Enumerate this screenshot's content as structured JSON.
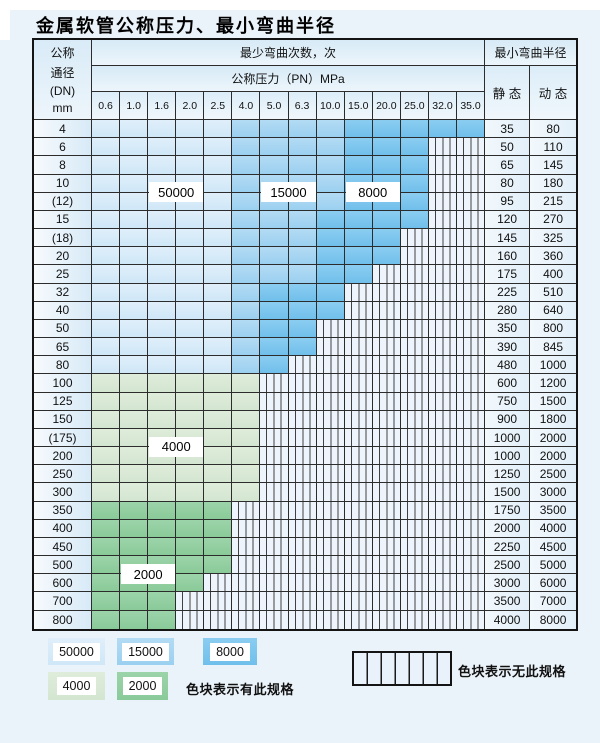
{
  "title": "金属软管公称压力、最小弯曲半径",
  "table": {
    "corner_lines": [
      "公称",
      "通径",
      "(DN)",
      "mm"
    ],
    "bend_header": "最少弯曲次数，次",
    "pressure_header": "公称压力（PN）MPa",
    "radius_header": "最小弯曲半径",
    "static_header": "静 态",
    "dynamic_header": "动 态",
    "overlay_labels": [
      {
        "text": "50000",
        "col_start": 3,
        "col_end": 4,
        "row_boundary": 4
      },
      {
        "text": "15000",
        "col_start": 7,
        "col_end": 8,
        "row_boundary": 4
      },
      {
        "text": "8000",
        "col_start": 10,
        "col_end": 11,
        "row_boundary": 4
      },
      {
        "text": "4000",
        "col_start": 3,
        "col_end": 4,
        "row_boundary": 18
      },
      {
        "text": "2000",
        "col_start": 2,
        "col_end": 3,
        "row_boundary": 25
      }
    ]
  },
  "legend": {
    "swatches": [
      {
        "label": "50000",
        "zone": "b1"
      },
      {
        "label": "15000",
        "zone": "b2"
      },
      {
        "label": "8000",
        "zone": "b3"
      },
      {
        "label": "4000",
        "zone": "g1"
      },
      {
        "label": "2000",
        "zone": "g2"
      }
    ],
    "available_note": "色块表示有此规格",
    "unavailable_note": "色块表示无此规格"
  },
  "colors": {
    "cycle_50000": "#d5eaf8",
    "cycle_15000": "#a6d5f1",
    "cycle_8000": "#7bc4ee",
    "cycle_4000": "#d8e9d5",
    "cycle_2000": "#92cea1",
    "no_spec_bg": "#edf4fb",
    "grid_line": "#2c2c2c"
  },
  "chart_data": {
    "type": "table",
    "title": "金属软管公称压力、最小弯曲半径",
    "pn_columns_mpa": [
      "0.6",
      "1.0",
      "1.6",
      "2.0",
      "2.5",
      "4.0",
      "5.0",
      "6.3",
      "10.0",
      "15.0",
      "20.0",
      "25.0",
      "32.0",
      "35.0"
    ],
    "radius_columns": [
      "静 态",
      "动 态"
    ],
    "zone_legend": {
      "b1": "50000",
      "b2": "15000",
      "b3": "8000",
      "g1": "4000",
      "g2": "2000",
      "x": "无此规格"
    },
    "rows": [
      {
        "dn": "4",
        "static": "35",
        "dynamic": "80",
        "cells": [
          "b1",
          "b1",
          "b1",
          "b1",
          "b1",
          "b2",
          "b2",
          "b2",
          "b2",
          "b3",
          "b3",
          "b3",
          "b3",
          "b3"
        ]
      },
      {
        "dn": "6",
        "static": "50",
        "dynamic": "110",
        "cells": [
          "b1",
          "b1",
          "b1",
          "b1",
          "b1",
          "b2",
          "b2",
          "b2",
          "b2",
          "b3",
          "b3",
          "b3",
          "x",
          "x"
        ]
      },
      {
        "dn": "8",
        "static": "65",
        "dynamic": "145",
        "cells": [
          "b1",
          "b1",
          "b1",
          "b1",
          "b1",
          "b2",
          "b2",
          "b2",
          "b2",
          "b3",
          "b3",
          "b3",
          "x",
          "x"
        ]
      },
      {
        "dn": "10",
        "static": "80",
        "dynamic": "180",
        "cells": [
          "b1",
          "b1",
          "b1",
          "b1",
          "b1",
          "b2",
          "b2",
          "b2",
          "b2",
          "b3",
          "b3",
          "b3",
          "x",
          "x"
        ]
      },
      {
        "dn": "(12)",
        "static": "95",
        "dynamic": "215",
        "cells": [
          "b1",
          "b1",
          "b1",
          "b1",
          "b1",
          "b2",
          "b2",
          "b2",
          "b2",
          "b3",
          "b3",
          "b3",
          "x",
          "x"
        ]
      },
      {
        "dn": "15",
        "static": "120",
        "dynamic": "270",
        "cells": [
          "b1",
          "b1",
          "b1",
          "b1",
          "b1",
          "b2",
          "b2",
          "b2",
          "b3",
          "b3",
          "b3",
          "b3",
          "x",
          "x"
        ]
      },
      {
        "dn": "(18)",
        "static": "145",
        "dynamic": "325",
        "cells": [
          "b1",
          "b1",
          "b1",
          "b1",
          "b1",
          "b2",
          "b2",
          "b2",
          "b3",
          "b3",
          "b3",
          "x",
          "x",
          "x"
        ]
      },
      {
        "dn": "20",
        "static": "160",
        "dynamic": "360",
        "cells": [
          "b1",
          "b1",
          "b1",
          "b1",
          "b1",
          "b2",
          "b2",
          "b2",
          "b3",
          "b3",
          "b3",
          "x",
          "x",
          "x"
        ]
      },
      {
        "dn": "25",
        "static": "175",
        "dynamic": "400",
        "cells": [
          "b1",
          "b1",
          "b1",
          "b1",
          "b1",
          "b2",
          "b2",
          "b2",
          "b3",
          "b3",
          "x",
          "x",
          "x",
          "x"
        ]
      },
      {
        "dn": "32",
        "static": "225",
        "dynamic": "510",
        "cells": [
          "b1",
          "b1",
          "b1",
          "b1",
          "b1",
          "b2",
          "b3",
          "b3",
          "b3",
          "x",
          "x",
          "x",
          "x",
          "x"
        ]
      },
      {
        "dn": "40",
        "static": "280",
        "dynamic": "640",
        "cells": [
          "b1",
          "b1",
          "b1",
          "b1",
          "b1",
          "b2",
          "b3",
          "b3",
          "b3",
          "x",
          "x",
          "x",
          "x",
          "x"
        ]
      },
      {
        "dn": "50",
        "static": "350",
        "dynamic": "800",
        "cells": [
          "b1",
          "b1",
          "b1",
          "b1",
          "b1",
          "b2",
          "b3",
          "b3",
          "x",
          "x",
          "x",
          "x",
          "x",
          "x"
        ]
      },
      {
        "dn": "65",
        "static": "390",
        "dynamic": "845",
        "cells": [
          "b1",
          "b1",
          "b1",
          "b1",
          "b1",
          "b2",
          "b3",
          "b3",
          "x",
          "x",
          "x",
          "x",
          "x",
          "x"
        ]
      },
      {
        "dn": "80",
        "static": "480",
        "dynamic": "1000",
        "cells": [
          "b1",
          "b1",
          "b1",
          "b1",
          "b1",
          "b2",
          "b3",
          "x",
          "x",
          "x",
          "x",
          "x",
          "x",
          "x"
        ]
      },
      {
        "dn": "100",
        "static": "600",
        "dynamic": "1200",
        "cells": [
          "g1",
          "g1",
          "g1",
          "g1",
          "g1",
          "g1",
          "x",
          "x",
          "x",
          "x",
          "x",
          "x",
          "x",
          "x"
        ]
      },
      {
        "dn": "125",
        "static": "750",
        "dynamic": "1500",
        "cells": [
          "g1",
          "g1",
          "g1",
          "g1",
          "g1",
          "g1",
          "x",
          "x",
          "x",
          "x",
          "x",
          "x",
          "x",
          "x"
        ]
      },
      {
        "dn": "150",
        "static": "900",
        "dynamic": "1800",
        "cells": [
          "g1",
          "g1",
          "g1",
          "g1",
          "g1",
          "g1",
          "x",
          "x",
          "x",
          "x",
          "x",
          "x",
          "x",
          "x"
        ]
      },
      {
        "dn": "(175)",
        "static": "1000",
        "dynamic": "2000",
        "cells": [
          "g1",
          "g1",
          "g1",
          "g1",
          "g1",
          "g1",
          "x",
          "x",
          "x",
          "x",
          "x",
          "x",
          "x",
          "x"
        ]
      },
      {
        "dn": "200",
        "static": "1000",
        "dynamic": "2000",
        "cells": [
          "g1",
          "g1",
          "g1",
          "g1",
          "g1",
          "g1",
          "x",
          "x",
          "x",
          "x",
          "x",
          "x",
          "x",
          "x"
        ]
      },
      {
        "dn": "250",
        "static": "1250",
        "dynamic": "2500",
        "cells": [
          "g1",
          "g1",
          "g1",
          "g1",
          "g1",
          "g1",
          "x",
          "x",
          "x",
          "x",
          "x",
          "x",
          "x",
          "x"
        ]
      },
      {
        "dn": "300",
        "static": "1500",
        "dynamic": "3000",
        "cells": [
          "g1",
          "g1",
          "g1",
          "g1",
          "g1",
          "g1",
          "x",
          "x",
          "x",
          "x",
          "x",
          "x",
          "x",
          "x"
        ]
      },
      {
        "dn": "350",
        "static": "1750",
        "dynamic": "3500",
        "cells": [
          "g2",
          "g2",
          "g2",
          "g2",
          "g2",
          "x",
          "x",
          "x",
          "x",
          "x",
          "x",
          "x",
          "x",
          "x"
        ]
      },
      {
        "dn": "400",
        "static": "2000",
        "dynamic": "4000",
        "cells": [
          "g2",
          "g2",
          "g2",
          "g2",
          "g2",
          "x",
          "x",
          "x",
          "x",
          "x",
          "x",
          "x",
          "x",
          "x"
        ]
      },
      {
        "dn": "450",
        "static": "2250",
        "dynamic": "4500",
        "cells": [
          "g2",
          "g2",
          "g2",
          "g2",
          "g2",
          "x",
          "x",
          "x",
          "x",
          "x",
          "x",
          "x",
          "x",
          "x"
        ]
      },
      {
        "dn": "500",
        "static": "2500",
        "dynamic": "5000",
        "cells": [
          "g2",
          "g2",
          "g2",
          "g2",
          "g2",
          "x",
          "x",
          "x",
          "x",
          "x",
          "x",
          "x",
          "x",
          "x"
        ]
      },
      {
        "dn": "600",
        "static": "3000",
        "dynamic": "6000",
        "cells": [
          "g2",
          "g2",
          "g2",
          "g2",
          "x",
          "x",
          "x",
          "x",
          "x",
          "x",
          "x",
          "x",
          "x",
          "x"
        ]
      },
      {
        "dn": "700",
        "static": "3500",
        "dynamic": "7000",
        "cells": [
          "g2",
          "g2",
          "g2",
          "x",
          "x",
          "x",
          "x",
          "x",
          "x",
          "x",
          "x",
          "x",
          "x",
          "x"
        ]
      },
      {
        "dn": "800",
        "static": "4000",
        "dynamic": "8000",
        "cells": [
          "g2",
          "g2",
          "g2",
          "x",
          "x",
          "x",
          "x",
          "x",
          "x",
          "x",
          "x",
          "x",
          "x",
          "x"
        ]
      }
    ]
  }
}
